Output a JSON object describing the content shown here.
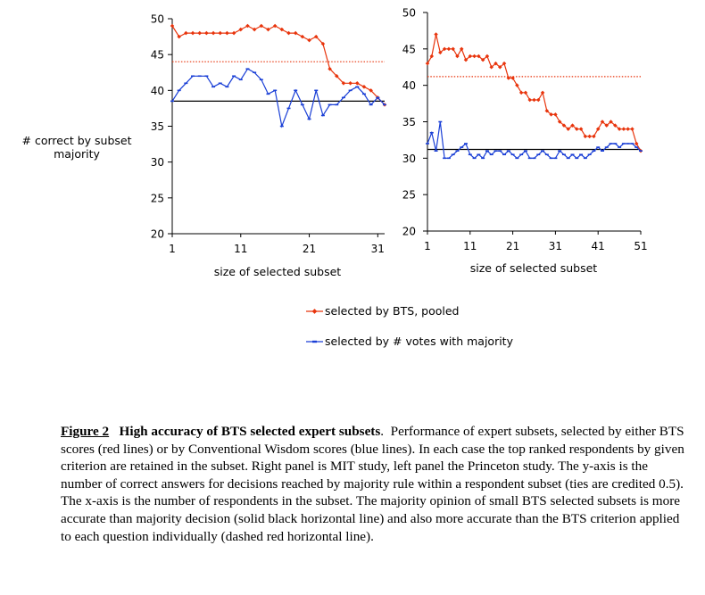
{
  "colors": {
    "bts": "#e8340c",
    "votes": "#1a3fd6",
    "baseline": "#000000"
  },
  "ylabel_lines": [
    "# correct  by subset",
    "majority"
  ],
  "legend": [
    {
      "label": "selected by BTS, pooled",
      "color": "#e8340c",
      "marker": "diamond"
    },
    {
      "label": "selected by # votes with majority",
      "color": "#1a3fd6",
      "marker": "dash"
    }
  ],
  "caption": {
    "label": "Figure 2",
    "title": "High accuracy of BTS selected expert subsets",
    "body": "Performance of expert subsets, selected by either BTS scores (red lines) or by Conventional Wisdom scores (blue lines). In each case the top ranked respondents by given criterion are retained in the subset.  Right panel is MIT study, left panel the Princeton study. The y-axis is the number of correct answers for decisions reached by majority rule within a respondent subset (ties are credited 0.5). The x-axis is the number of respondents in the subset.  The majority opinion of small BTS selected subsets is more accurate than majority decision (solid black horizontal line) and also more accurate than the BTS criterion applied to each question individually (dashed red horizontal line)."
  },
  "chart_data": [
    {
      "type": "line",
      "panel": "left",
      "xlabel": "size of selected subset",
      "ylabel": "# correct  by subset majority",
      "xlim": [
        1,
        32
      ],
      "ylim": [
        20,
        50
      ],
      "xticks": [
        1,
        11,
        21,
        31
      ],
      "yticks": [
        20,
        25,
        30,
        35,
        40,
        45,
        50
      ],
      "series": [
        {
          "name": "selected by BTS, pooled",
          "color": "#e8340c",
          "x": [
            1,
            2,
            3,
            4,
            5,
            6,
            7,
            8,
            9,
            10,
            11,
            12,
            13,
            14,
            15,
            16,
            17,
            18,
            19,
            20,
            21,
            22,
            23,
            24,
            25,
            26,
            27,
            28,
            29,
            30,
            31,
            32
          ],
          "y": [
            49,
            47.5,
            48,
            48,
            48,
            48,
            48,
            48,
            48,
            48,
            48.5,
            49,
            48.5,
            49,
            48.5,
            49,
            48.5,
            48,
            48,
            47.5,
            47,
            47.5,
            46.5,
            43,
            42,
            41,
            41,
            41,
            40.5,
            40,
            39,
            38
          ]
        },
        {
          "name": "selected by # votes with majority",
          "color": "#1a3fd6",
          "x": [
            1,
            2,
            3,
            4,
            5,
            6,
            7,
            8,
            9,
            10,
            11,
            12,
            13,
            14,
            15,
            16,
            17,
            18,
            19,
            20,
            21,
            22,
            23,
            24,
            25,
            26,
            27,
            28,
            29,
            30,
            31,
            32
          ],
          "y": [
            38.5,
            40,
            41,
            42,
            42,
            42,
            40.5,
            41,
            40.5,
            42,
            41.5,
            43,
            42.5,
            41.5,
            39.5,
            40,
            35,
            37.5,
            40,
            38,
            36,
            40,
            36.5,
            38,
            38,
            39,
            40,
            40.5,
            39.5,
            38,
            39,
            38
          ]
        }
      ],
      "reference_lines": [
        {
          "y": 38.5,
          "style": "solid",
          "color": "#000000"
        },
        {
          "y": 44,
          "style": "dotted",
          "color": "#e8340c"
        }
      ]
    },
    {
      "type": "line",
      "panel": "right",
      "xlabel": "size of selected subset",
      "xlim": [
        1,
        51
      ],
      "ylim": [
        20,
        50
      ],
      "xticks": [
        1,
        11,
        21,
        31,
        41,
        51
      ],
      "yticks": [
        20,
        25,
        30,
        35,
        40,
        45,
        50
      ],
      "series": [
        {
          "name": "selected by BTS, pooled",
          "color": "#e8340c",
          "x": [
            1,
            2,
            3,
            4,
            5,
            6,
            7,
            8,
            9,
            10,
            11,
            12,
            13,
            14,
            15,
            16,
            17,
            18,
            19,
            20,
            21,
            22,
            23,
            24,
            25,
            26,
            27,
            28,
            29,
            30,
            31,
            32,
            33,
            34,
            35,
            36,
            37,
            38,
            39,
            40,
            41,
            42,
            43,
            44,
            45,
            46,
            47,
            48,
            49,
            50,
            51
          ],
          "y": [
            43,
            44,
            47,
            44.5,
            45,
            45,
            45,
            44,
            45,
            43.5,
            44,
            44,
            44,
            43.5,
            44,
            42.5,
            43,
            42.5,
            43,
            41,
            41,
            40,
            39,
            39,
            38,
            38,
            38,
            39,
            36.5,
            36,
            36,
            35,
            34.5,
            34,
            34.5,
            34,
            34,
            33,
            33,
            33,
            34,
            35,
            34.5,
            35,
            34.5,
            34,
            34,
            34,
            34,
            32,
            31
          ]
        },
        {
          "name": "selected by # votes with majority",
          "color": "#1a3fd6",
          "x": [
            1,
            2,
            3,
            4,
            5,
            6,
            7,
            8,
            9,
            10,
            11,
            12,
            13,
            14,
            15,
            16,
            17,
            18,
            19,
            20,
            21,
            22,
            23,
            24,
            25,
            26,
            27,
            28,
            29,
            30,
            31,
            32,
            33,
            34,
            35,
            36,
            37,
            38,
            39,
            40,
            41,
            42,
            43,
            44,
            45,
            46,
            47,
            48,
            49,
            50,
            51
          ],
          "y": [
            32,
            33.5,
            31,
            35,
            30,
            30,
            30.5,
            31,
            31.5,
            32,
            30.5,
            30,
            30.5,
            30,
            31,
            30.5,
            31,
            31,
            30.5,
            31,
            30.5,
            30,
            30.5,
            31,
            30,
            30,
            30.5,
            31,
            30.5,
            30,
            30,
            31,
            30.5,
            30,
            30.5,
            30,
            30.5,
            30,
            30.5,
            31,
            31.5,
            31,
            31.5,
            32,
            32,
            31.5,
            32,
            32,
            32,
            31.5,
            31
          ]
        }
      ],
      "reference_lines": [
        {
          "y": 31.2,
          "style": "solid",
          "color": "#000000"
        },
        {
          "y": 41.2,
          "style": "dotted",
          "color": "#e8340c"
        }
      ]
    }
  ]
}
